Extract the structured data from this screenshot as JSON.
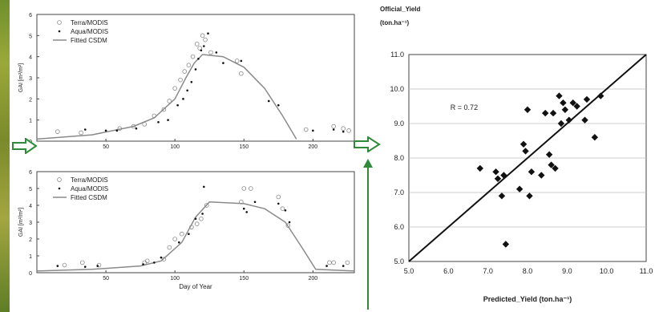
{
  "colors": {
    "arrow": "#2e8b3a",
    "line": "#888888",
    "axis": "#222222"
  },
  "chart_data": [
    {
      "type": "scatter",
      "xlim": [
        0,
        230
      ],
      "ylim": [
        0,
        6
      ],
      "xticks": [
        "50",
        "100",
        "150",
        "200"
      ],
      "xtick_values": [
        50,
        100,
        150,
        200
      ],
      "yticks": [
        "0",
        "1",
        "2",
        "3",
        "4",
        "5",
        "6"
      ],
      "ylabel": "GAI [m²/m²]",
      "xlabel": "",
      "legend": [
        "Terra/MODIS",
        "Aqua/MODIS",
        "Fitted CSDM"
      ],
      "series": [
        {
          "name": "Terra/MODIS",
          "points": [
            [
              15,
              0.45
            ],
            [
              32,
              0.4
            ],
            [
              60,
              0.6
            ],
            [
              70,
              0.7
            ],
            [
              78,
              0.8
            ],
            [
              85,
              1.2
            ],
            [
              92,
              1.5
            ],
            [
              96,
              1.9
            ],
            [
              100,
              2.5
            ],
            [
              104,
              2.9
            ],
            [
              107,
              3.3
            ],
            [
              110,
              3.6
            ],
            [
              113,
              4.0
            ],
            [
              116,
              4.6
            ],
            [
              118,
              4.4
            ],
            [
              120,
              5.0
            ],
            [
              122,
              4.8
            ],
            [
              126,
              4.2
            ],
            [
              145,
              3.8
            ],
            [
              148,
              3.2
            ],
            [
              195,
              0.55
            ],
            [
              215,
              0.7
            ],
            [
              222,
              0.6
            ],
            [
              226,
              0.5
            ]
          ]
        },
        {
          "name": "Aqua/MODIS",
          "points": [
            [
              35,
              0.55
            ],
            [
              50,
              0.5
            ],
            [
              58,
              0.5
            ],
            [
              72,
              0.6
            ],
            [
              88,
              0.9
            ],
            [
              95,
              1.0
            ],
            [
              102,
              1.7
            ],
            [
              106,
              2.0
            ],
            [
              109,
              2.4
            ],
            [
              112,
              2.8
            ],
            [
              115,
              3.4
            ],
            [
              117,
              3.9
            ],
            [
              119,
              4.3
            ],
            [
              121,
              4.5
            ],
            [
              124,
              5.1
            ],
            [
              130,
              4.2
            ],
            [
              135,
              3.7
            ],
            [
              148,
              3.8
            ],
            [
              168,
              1.9
            ],
            [
              175,
              1.7
            ],
            [
              200,
              0.5
            ],
            [
              215,
              0.55
            ],
            [
              222,
              0.45
            ]
          ]
        },
        {
          "name": "Fitted CSDM",
          "line": [
            [
              0,
              0.1
            ],
            [
              40,
              0.3
            ],
            [
              70,
              0.7
            ],
            [
              85,
              1.1
            ],
            [
              100,
              2.0
            ],
            [
              108,
              3.0
            ],
            [
              114,
              3.7
            ],
            [
              120,
              4.1
            ],
            [
              135,
              4.0
            ],
            [
              150,
              3.5
            ],
            [
              165,
              2.5
            ],
            [
              178,
              1.2
            ],
            [
              188,
              0.1
            ]
          ]
        }
      ]
    },
    {
      "type": "scatter",
      "xlim": [
        0,
        230
      ],
      "ylim": [
        0,
        6
      ],
      "xticks": [
        "50",
        "100",
        "150",
        "200"
      ],
      "xtick_values": [
        50,
        100,
        150,
        200
      ],
      "yticks": [
        "0",
        "1",
        "2",
        "3",
        "4",
        "5",
        "6"
      ],
      "ylabel": "GAI [m²/m²]",
      "xlabel": "Day of Year",
      "legend": [
        "Terra/MODIS",
        "Aqua/MODIS",
        "Fitted CSDM"
      ],
      "series": [
        {
          "name": "Terra/MODIS",
          "points": [
            [
              20,
              0.45
            ],
            [
              33,
              0.6
            ],
            [
              45,
              0.45
            ],
            [
              78,
              0.6
            ],
            [
              80,
              0.7
            ],
            [
              92,
              0.8
            ],
            [
              96,
              1.5
            ],
            [
              100,
              2.0
            ],
            [
              105,
              2.3
            ],
            [
              112,
              2.7
            ],
            [
              116,
              2.9
            ],
            [
              119,
              3.2
            ],
            [
              123,
              4.0
            ],
            [
              148,
              4.2
            ],
            [
              150,
              5.0
            ],
            [
              155,
              5.0
            ],
            [
              175,
              4.5
            ],
            [
              178,
              3.8
            ],
            [
              182,
              2.8
            ],
            [
              212,
              0.6
            ],
            [
              215,
              0.6
            ],
            [
              225,
              0.6
            ]
          ]
        },
        {
          "name": "Aqua/MODIS",
          "points": [
            [
              15,
              0.4
            ],
            [
              35,
              0.35
            ],
            [
              44,
              0.4
            ],
            [
              77,
              0.5
            ],
            [
              85,
              0.6
            ],
            [
              90,
              0.9
            ],
            [
              103,
              1.8
            ],
            [
              110,
              2.3
            ],
            [
              115,
              3.2
            ],
            [
              120,
              3.5
            ],
            [
              121,
              5.1
            ],
            [
              150,
              3.8
            ],
            [
              152,
              3.6
            ],
            [
              158,
              4.2
            ],
            [
              175,
              4.1
            ],
            [
              180,
              3.7
            ],
            [
              183,
              3.0
            ],
            [
              210,
              0.4
            ],
            [
              222,
              0.4
            ]
          ]
        },
        {
          "name": "Fitted CSDM",
          "line": [
            [
              0,
              0.1
            ],
            [
              40,
              0.2
            ],
            [
              75,
              0.4
            ],
            [
              90,
              0.7
            ],
            [
              105,
              1.8
            ],
            [
              115,
              3.3
            ],
            [
              125,
              4.2
            ],
            [
              150,
              4.1
            ],
            [
              165,
              3.8
            ],
            [
              180,
              3.0
            ],
            [
              192,
              1.5
            ],
            [
              202,
              0.2
            ],
            [
              230,
              0.1
            ]
          ]
        }
      ]
    },
    {
      "type": "scatter",
      "xlim": [
        5.0,
        11.0
      ],
      "ylim": [
        5.0,
        11.0
      ],
      "xticks": [
        "5.0",
        "6.0",
        "7.0",
        "8.0",
        "9.0",
        "10.0",
        "11.0"
      ],
      "yticks": [
        "5.0",
        "6.0",
        "7.0",
        "8.0",
        "9.0",
        "10.0",
        "11.0"
      ],
      "title": "Official_Yield",
      "title_unit": "(ton.ha⁻¹)",
      "xlabel": "Predicted_Yield (ton.ha⁻¹)",
      "annotation": "R = 0.72",
      "grid": true,
      "points": [
        [
          6.8,
          7.7
        ],
        [
          7.2,
          7.6
        ],
        [
          7.25,
          7.4
        ],
        [
          7.35,
          6.9
        ],
        [
          7.4,
          7.5
        ],
        [
          7.45,
          5.5
        ],
        [
          7.8,
          7.1
        ],
        [
          7.9,
          8.4
        ],
        [
          7.95,
          8.2
        ],
        [
          8.0,
          9.4
        ],
        [
          8.05,
          6.9
        ],
        [
          8.1,
          7.6
        ],
        [
          8.35,
          7.5
        ],
        [
          8.45,
          9.3
        ],
        [
          8.55,
          8.1
        ],
        [
          8.6,
          7.8
        ],
        [
          8.65,
          9.3
        ],
        [
          8.7,
          7.7
        ],
        [
          8.8,
          9.8
        ],
        [
          8.85,
          9.0
        ],
        [
          8.9,
          9.6
        ],
        [
          8.95,
          9.4
        ],
        [
          9.05,
          9.1
        ],
        [
          9.15,
          9.6
        ],
        [
          9.25,
          9.5
        ],
        [
          9.45,
          9.1
        ],
        [
          9.5,
          9.7
        ],
        [
          9.7,
          8.6
        ],
        [
          9.85,
          9.8
        ]
      ],
      "fit_line": [
        [
          5.0,
          5.0
        ],
        [
          11.0,
          11.0
        ]
      ]
    }
  ]
}
